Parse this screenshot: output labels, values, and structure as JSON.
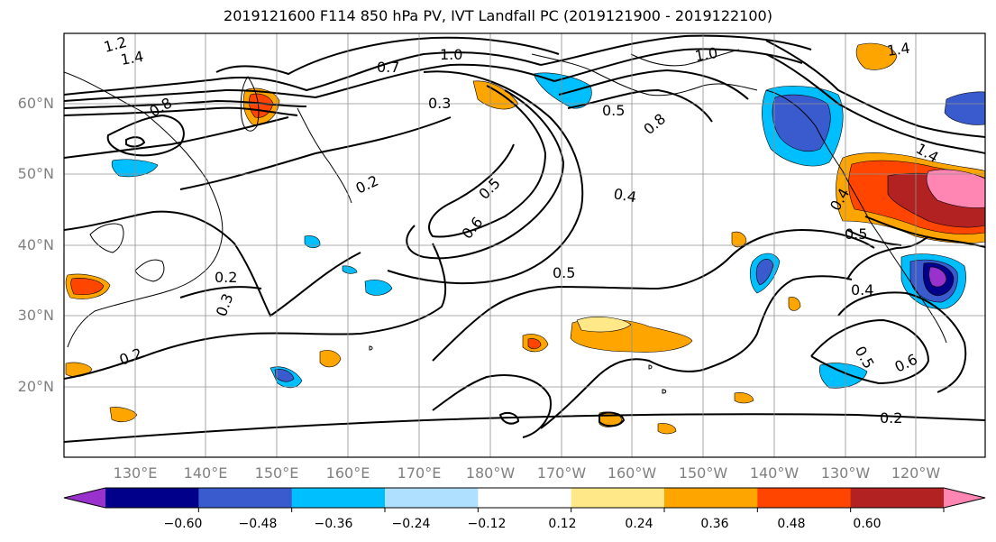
{
  "title": "2019121600 F114 850 hPa PV, IVT Landfall PC (2019121900 - 2019122100)",
  "lat_labels": [
    "60°N",
    "50°N",
    "40°N",
    "30°N",
    "20°N"
  ],
  "lon_labels": [
    "130°E",
    "140°E",
    "150°E",
    "160°E",
    "170°E",
    "180°W",
    "170°W",
    "160°W",
    "150°W",
    "140°W",
    "130°W",
    "120°W"
  ],
  "contour_labels": [
    "1.2",
    "1.4",
    "1.4",
    "0.8",
    "1.0",
    "0.7",
    "0.3",
    "1.0",
    "0.5",
    "0.8",
    "1.4",
    "0.2",
    "0.5",
    "0.6",
    "0.4",
    "0.5",
    "0.2",
    "0.3",
    "0.2",
    "0.4",
    "0.5",
    "0.4",
    "0.5",
    "0.6",
    "0.2"
  ],
  "colorbar": {
    "ticks": [
      "−0.60",
      "−0.48",
      "−0.36",
      "−0.24",
      "−0.12",
      "0.12",
      "0.24",
      "0.36",
      "0.48",
      "0.60"
    ],
    "colors": [
      "#9932cc",
      "#00008b",
      "#3a5bcd",
      "#00bfff",
      "#b0e0ff",
      "#ffffff",
      "#ffe887",
      "#ffa500",
      "#ff4500",
      "#b22222",
      "#ff85b3"
    ]
  }
}
